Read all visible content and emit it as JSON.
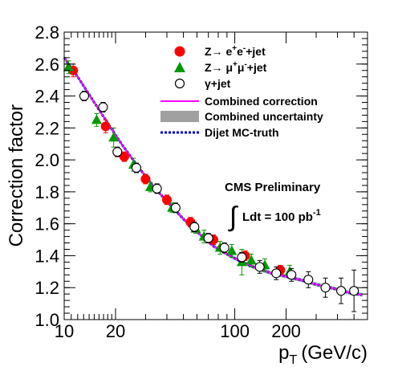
{
  "chart_data": {
    "type": "scatter",
    "title": "",
    "xlabel": "p",
    "xlabel_sub": "T",
    "xlabel_unit": "(GeV/c)",
    "ylabel": "Correction factor",
    "x_scale": "log",
    "xlim": [
      10,
      600
    ],
    "ylim": [
      1.0,
      2.8
    ],
    "x_ticks": [
      10,
      20,
      100,
      200
    ],
    "x_tick_labels": [
      "10",
      "20",
      "100",
      "200"
    ],
    "x_minor_ticks": [
      30,
      40,
      50,
      60,
      70,
      80,
      90,
      300,
      400,
      500
    ],
    "y_ticks": [
      1.0,
      1.2,
      1.4,
      1.6,
      1.8,
      2.0,
      2.2,
      2.4,
      2.6,
      2.8
    ],
    "y_tick_labels": [
      "1.0",
      "1.2",
      "1.4",
      "1.6",
      "1.8",
      "2.0",
      "2.2",
      "2.4",
      "2.6",
      "2.8"
    ],
    "annotation": {
      "line1": "CMS Preliminary",
      "integral": "∫",
      "line2": "Ldt = 100 pb",
      "line2_sup": "-1"
    },
    "legend": {
      "placement": "top-right",
      "entries": [
        {
          "key": "zee",
          "label_main": "Z→ e",
          "sup1": "+",
          "mid": "e",
          "sup2": "-",
          "tail": "+jet"
        },
        {
          "key": "zmm",
          "label_main": "Z→ μ",
          "sup1": "+",
          "mid": "μ",
          "sup2": "-",
          "tail": "+jet"
        },
        {
          "key": "gam",
          "label_main": "γ+jet",
          "sup1": "",
          "mid": "",
          "sup2": "",
          "tail": ""
        },
        {
          "key": "comb",
          "label_main": "Combined correction",
          "sup1": "",
          "mid": "",
          "sup2": "",
          "tail": ""
        },
        {
          "key": "unc",
          "label_main": "Combined uncertainty",
          "sup1": "",
          "mid": "",
          "sup2": "",
          "tail": ""
        },
        {
          "key": "mc",
          "label_main": "Dijet MC-truth",
          "sup1": "",
          "mid": "",
          "sup2": "",
          "tail": ""
        }
      ]
    },
    "colors": {
      "zee": "#ff0000",
      "zmm": "#009900",
      "gam": "#000000",
      "combined": "#ff00ff",
      "uncertainty": "#a0a0a0",
      "mc_truth": "#0000cc"
    },
    "curve": {
      "x": [
        10,
        12,
        15,
        18,
        22,
        27,
        33,
        40,
        50,
        60,
        75,
        90,
        110,
        135,
        165,
        200,
        250,
        300,
        380,
        460,
        560
      ],
      "y": [
        2.64,
        2.52,
        2.36,
        2.23,
        2.09,
        1.96,
        1.84,
        1.74,
        1.63,
        1.55,
        1.46,
        1.41,
        1.36,
        1.32,
        1.29,
        1.27,
        1.245,
        1.22,
        1.195,
        1.17,
        1.155
      ]
    },
    "series": [
      {
        "name": "Z→ e+e-+jet",
        "key": "zee",
        "marker": "circle-filled",
        "points": [
          {
            "x": 11.3,
            "y": 2.56,
            "err": 0.04
          },
          {
            "x": 17.5,
            "y": 2.21,
            "err": 0.04
          },
          {
            "x": 22.5,
            "y": 2.02,
            "err": 0.03
          },
          {
            "x": 30,
            "y": 1.88,
            "err": 0.03
          },
          {
            "x": 40,
            "y": 1.75,
            "err": 0.03
          },
          {
            "x": 55,
            "y": 1.61,
            "err": 0.03
          },
          {
            "x": 75,
            "y": 1.5,
            "err": 0.03
          },
          {
            "x": 115,
            "y": 1.4,
            "err": 0.03
          },
          {
            "x": 185,
            "y": 1.31,
            "err": 0.03
          }
        ]
      },
      {
        "name": "Z→ μ+μ-+jet",
        "key": "zmm",
        "marker": "triangle",
        "points": [
          {
            "x": 10.6,
            "y": 2.58,
            "err": 0.04
          },
          {
            "x": 15.5,
            "y": 2.25,
            "err": 0.04
          },
          {
            "x": 19.5,
            "y": 2.14,
            "err": 0.06
          },
          {
            "x": 25.5,
            "y": 1.97,
            "err": 0.04
          },
          {
            "x": 32,
            "y": 1.83,
            "err": 0.03
          },
          {
            "x": 43,
            "y": 1.7,
            "err": 0.03
          },
          {
            "x": 59,
            "y": 1.57,
            "err": 0.03
          },
          {
            "x": 66,
            "y": 1.52,
            "err": 0.04
          },
          {
            "x": 82,
            "y": 1.45,
            "err": 0.04
          },
          {
            "x": 96,
            "y": 1.43,
            "err": 0.04
          },
          {
            "x": 125,
            "y": 1.37,
            "err": 0.04
          },
          {
            "x": 150,
            "y": 1.34,
            "err": 0.04
          },
          {
            "x": 110,
            "y": 1.36,
            "err": 0.08
          },
          {
            "x": 210,
            "y": 1.3,
            "err": 0.04
          }
        ]
      },
      {
        "name": "γ+jet",
        "key": "gam",
        "marker": "circle-open",
        "points": [
          {
            "x": 13.1,
            "y": 2.4,
            "err": 0.03
          },
          {
            "x": 16.9,
            "y": 2.33,
            "err": 0.03
          },
          {
            "x": 20.5,
            "y": 2.05,
            "err": 0.03
          },
          {
            "x": 26.5,
            "y": 1.95,
            "err": 0.03
          },
          {
            "x": 35,
            "y": 1.82,
            "err": 0.03
          },
          {
            "x": 45,
            "y": 1.7,
            "err": 0.03
          },
          {
            "x": 58,
            "y": 1.58,
            "err": 0.03
          },
          {
            "x": 70,
            "y": 1.51,
            "err": 0.03
          },
          {
            "x": 87,
            "y": 1.45,
            "err": 0.03
          },
          {
            "x": 110,
            "y": 1.39,
            "err": 0.03
          },
          {
            "x": 140,
            "y": 1.33,
            "err": 0.04
          },
          {
            "x": 175,
            "y": 1.29,
            "err": 0.04
          },
          {
            "x": 215,
            "y": 1.28,
            "err": 0.04
          },
          {
            "x": 270,
            "y": 1.25,
            "err": 0.05
          },
          {
            "x": 340,
            "y": 1.2,
            "err": 0.06
          },
          {
            "x": 420,
            "y": 1.18,
            "err": 0.08
          },
          {
            "x": 500,
            "y": 1.18,
            "err": 0.13
          }
        ]
      }
    ]
  }
}
